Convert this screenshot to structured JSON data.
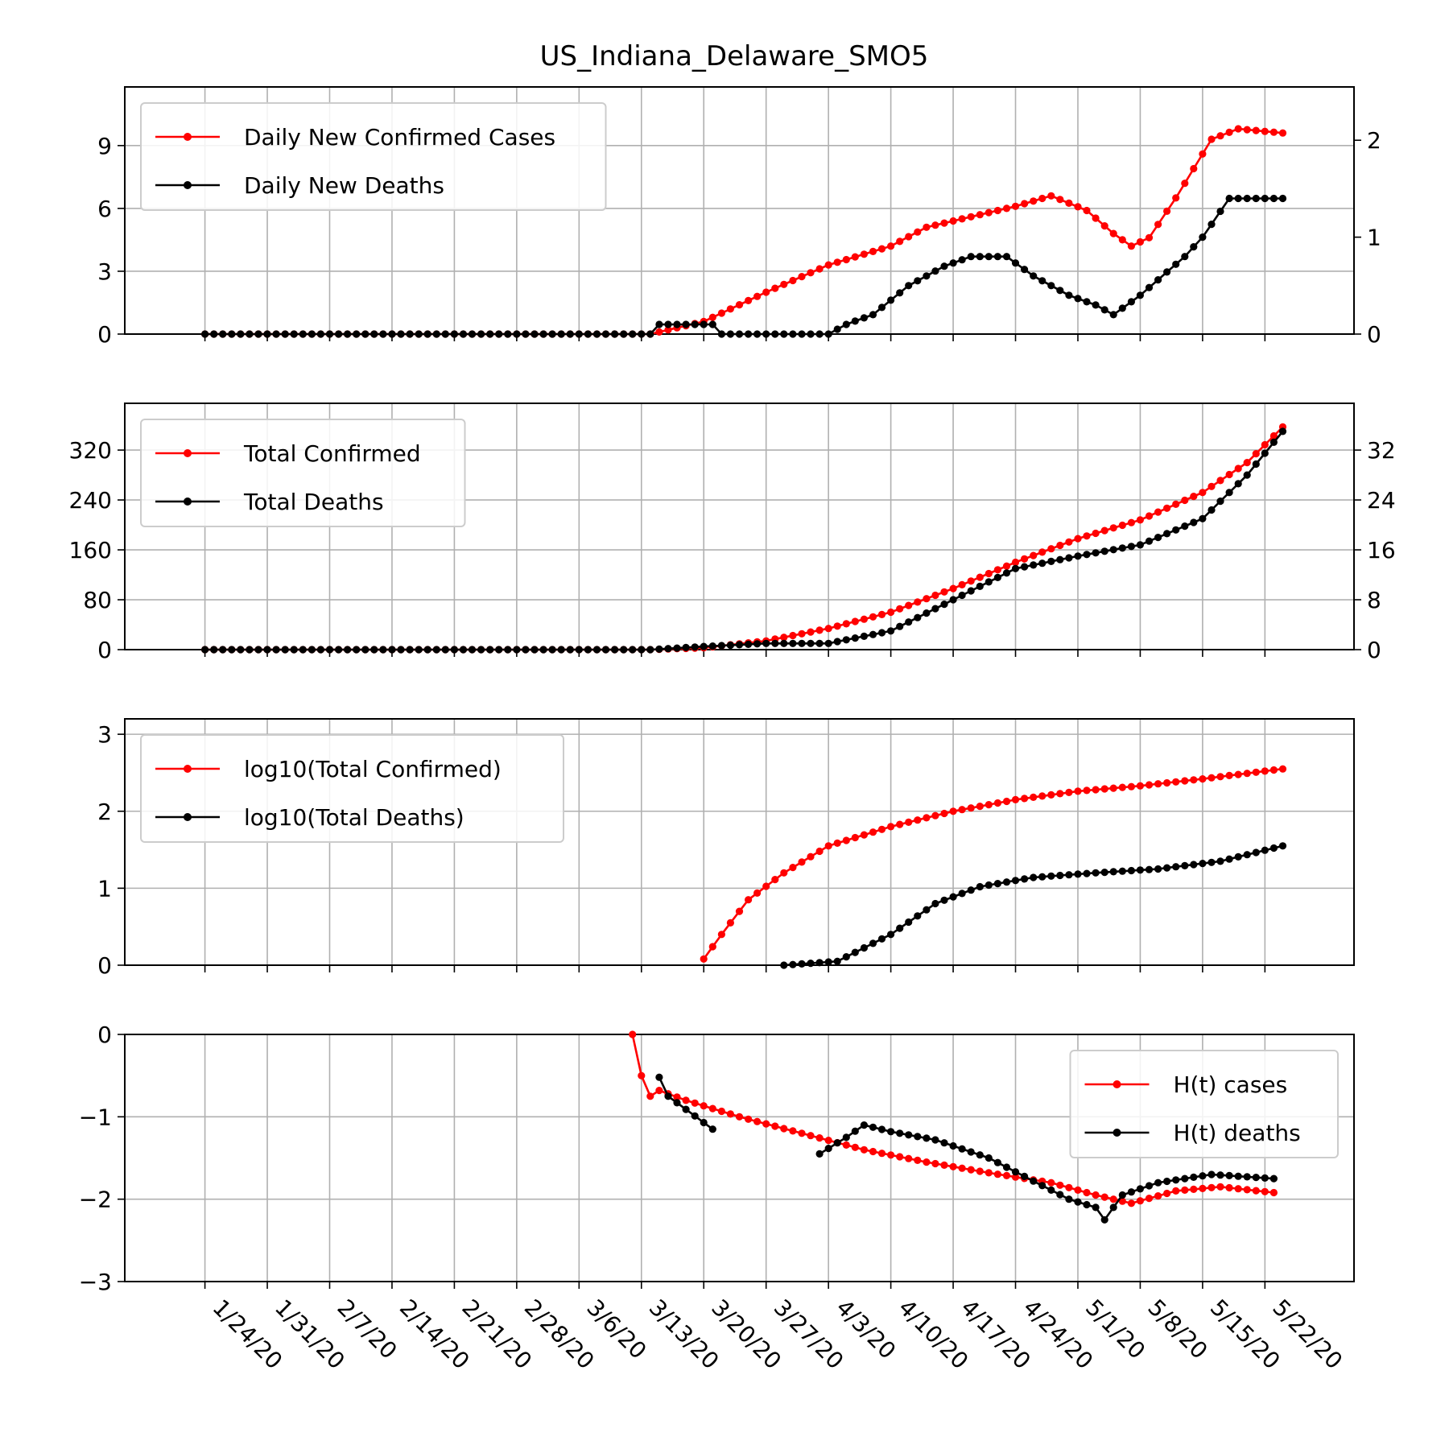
{
  "chart_data": {
    "title": "US_Indiana_Delaware_SMO5",
    "type": "line",
    "x_ticks": [
      "1/24/20",
      "1/31/20",
      "2/7/20",
      "2/14/20",
      "2/21/20",
      "2/28/20",
      "3/6/20",
      "3/13/20",
      "3/20/20",
      "3/27/20",
      "4/3/20",
      "4/10/20",
      "4/17/20",
      "4/24/20",
      "5/1/20",
      "5/8/20",
      "5/15/20",
      "5/22/20"
    ],
    "x_range": [
      "2020-01-15",
      "2020-06-01"
    ],
    "series_start": "2020-01-24",
    "series_end": "2020-05-24",
    "colors": {
      "cases": "#ff0000",
      "deaths": "#000000",
      "grid": "#b0b0b0"
    },
    "panels": [
      {
        "name": "daily",
        "type": "line",
        "legend": [
          "Daily New Confirmed Cases",
          "Daily New Deaths"
        ],
        "legend_loc": "upper left",
        "grid": true,
        "ylim_left": [
          0,
          11.8
        ],
        "yticks_left": [
          "0",
          "3",
          "6",
          "9"
        ],
        "ylim_right": [
          0,
          2.55
        ],
        "yticks_right": [
          "0",
          "1",
          "2"
        ],
        "cases_keypoints": [
          [
            "2020-03-14",
            0
          ],
          [
            "2020-03-20",
            0.6
          ],
          [
            "2020-03-27",
            2.0
          ],
          [
            "2020-04-03",
            3.3
          ],
          [
            "2020-04-10",
            4.2
          ],
          [
            "2020-04-14",
            5.1
          ],
          [
            "2020-04-20",
            5.7
          ],
          [
            "2020-04-24",
            6.1
          ],
          [
            "2020-04-28",
            6.6
          ],
          [
            "2020-05-02",
            5.9
          ],
          [
            "2020-05-05",
            4.8
          ],
          [
            "2020-05-07",
            4.2
          ],
          [
            "2020-05-09",
            4.6
          ],
          [
            "2020-05-12",
            6.5
          ],
          [
            "2020-05-16",
            9.3
          ],
          [
            "2020-05-19",
            9.8
          ],
          [
            "2020-05-24",
            9.6
          ]
        ],
        "deaths_keypoints": [
          [
            "2020-03-14",
            0
          ],
          [
            "2020-03-15",
            0.1
          ],
          [
            "2020-03-21",
            0.1
          ],
          [
            "2020-03-22",
            0
          ],
          [
            "2020-04-03",
            0
          ],
          [
            "2020-04-05",
            0.1
          ],
          [
            "2020-04-08",
            0.2
          ],
          [
            "2020-04-12",
            0.5
          ],
          [
            "2020-04-16",
            0.7
          ],
          [
            "2020-04-19",
            0.8
          ],
          [
            "2020-04-23",
            0.8
          ],
          [
            "2020-04-26",
            0.6
          ],
          [
            "2020-04-30",
            0.4
          ],
          [
            "2020-05-03",
            0.3
          ],
          [
            "2020-05-05",
            0.2
          ],
          [
            "2020-05-08",
            0.4
          ],
          [
            "2020-05-13",
            0.8
          ],
          [
            "2020-05-15",
            1.0
          ],
          [
            "2020-05-18",
            1.4
          ],
          [
            "2020-05-24",
            1.4
          ]
        ]
      },
      {
        "name": "total",
        "type": "line",
        "legend": [
          "Total Confirmed",
          "Total Deaths"
        ],
        "legend_loc": "upper left",
        "grid": true,
        "ylim_left": [
          0,
          395
        ],
        "yticks_left": [
          "0",
          "80",
          "160",
          "240",
          "320"
        ],
        "ylim_right": [
          0,
          39.5
        ],
        "yticks_right": [
          "0",
          "8",
          "16",
          "24",
          "32"
        ],
        "cases_keypoints": [
          [
            "2020-03-14",
            0
          ],
          [
            "2020-03-20",
            3
          ],
          [
            "2020-03-27",
            14
          ],
          [
            "2020-04-03",
            34
          ],
          [
            "2020-04-10",
            60
          ],
          [
            "2020-04-17",
            98
          ],
          [
            "2020-04-24",
            140
          ],
          [
            "2020-05-01",
            178
          ],
          [
            "2020-05-08",
            208
          ],
          [
            "2020-05-15",
            252
          ],
          [
            "2020-05-20",
            300
          ],
          [
            "2020-05-24",
            357
          ]
        ],
        "deaths_keypoints": [
          [
            "2020-03-14",
            0
          ],
          [
            "2020-03-20",
            0.5
          ],
          [
            "2020-03-27",
            1
          ],
          [
            "2020-04-03",
            1
          ],
          [
            "2020-04-10",
            3
          ],
          [
            "2020-04-17",
            8
          ],
          [
            "2020-04-24",
            13
          ],
          [
            "2020-05-01",
            15
          ],
          [
            "2020-05-08",
            16.8
          ],
          [
            "2020-05-15",
            21
          ],
          [
            "2020-05-20",
            28
          ],
          [
            "2020-05-24",
            35
          ]
        ]
      },
      {
        "name": "log10",
        "type": "line",
        "legend": [
          "log10(Total Confirmed)",
          "log10(Total Deaths)"
        ],
        "legend_loc": "upper left",
        "grid": true,
        "ylim_left": [
          0,
          3.2
        ],
        "yticks_left": [
          "0",
          "1",
          "2",
          "3"
        ],
        "cases_keypoints": [
          [
            "2020-03-20",
            0.08
          ],
          [
            "2020-03-22",
            0.4
          ],
          [
            "2020-03-25",
            0.85
          ],
          [
            "2020-03-29",
            1.2
          ],
          [
            "2020-04-03",
            1.55
          ],
          [
            "2020-04-10",
            1.8
          ],
          [
            "2020-04-17",
            2.0
          ],
          [
            "2020-04-24",
            2.15
          ],
          [
            "2020-05-01",
            2.26
          ],
          [
            "2020-05-08",
            2.33
          ],
          [
            "2020-05-15",
            2.42
          ],
          [
            "2020-05-24",
            2.55
          ]
        ],
        "deaths_keypoints": [
          [
            "2020-03-29",
            0
          ],
          [
            "2020-04-04",
            0.05
          ],
          [
            "2020-04-10",
            0.4
          ],
          [
            "2020-04-15",
            0.8
          ],
          [
            "2020-04-20",
            1.02
          ],
          [
            "2020-04-26",
            1.14
          ],
          [
            "2020-05-03",
            1.2
          ],
          [
            "2020-05-10",
            1.25
          ],
          [
            "2020-05-17",
            1.35
          ],
          [
            "2020-05-24",
            1.55
          ]
        ]
      },
      {
        "name": "H(t)",
        "type": "line",
        "legend": [
          "H(t) cases",
          "H(t) deaths"
        ],
        "legend_loc": "upper right",
        "grid": true,
        "ylim_left": [
          -3,
          0
        ],
        "yticks_left": [
          "0",
          "−1",
          "−2",
          "−3"
        ],
        "cases_keypoints": [
          [
            "2020-03-12",
            0
          ],
          [
            "2020-03-13",
            -0.5
          ],
          [
            "2020-03-14",
            -0.75
          ],
          [
            "2020-03-15",
            -0.68
          ],
          [
            "2020-03-18",
            -0.8
          ],
          [
            "2020-03-24",
            -1.0
          ],
          [
            "2020-03-31",
            -1.2
          ],
          [
            "2020-04-07",
            -1.4
          ],
          [
            "2020-04-14",
            -1.55
          ],
          [
            "2020-04-21",
            -1.68
          ],
          [
            "2020-04-28",
            -1.8
          ],
          [
            "2020-05-03",
            -1.95
          ],
          [
            "2020-05-07",
            -2.05
          ],
          [
            "2020-05-12",
            -1.9
          ],
          [
            "2020-05-17",
            -1.85
          ],
          [
            "2020-05-23",
            -1.92
          ]
        ],
        "deaths_keypoints": [
          [
            "2020-03-15",
            -0.52
          ],
          [
            "2020-03-16",
            -0.75
          ],
          [
            "2020-03-21",
            -1.15
          ],
          [
            "2020-03-22",
            null
          ],
          [
            "2020-03-28",
            -1.38
          ],
          [
            "2020-04-02",
            -1.45
          ],
          [
            "2020-04-05",
            -1.25
          ],
          [
            "2020-04-07",
            -1.1
          ],
          [
            "2020-04-10",
            -1.18
          ],
          [
            "2020-04-15",
            -1.28
          ],
          [
            "2020-04-21",
            -1.5
          ],
          [
            "2020-04-26",
            -1.78
          ],
          [
            "2020-04-30",
            -2.0
          ],
          [
            "2020-05-03",
            -2.1
          ],
          [
            "2020-05-04",
            -2.25
          ],
          [
            "2020-05-06",
            -1.95
          ],
          [
            "2020-05-10",
            -1.8
          ],
          [
            "2020-05-16",
            -1.7
          ],
          [
            "2020-05-23",
            -1.75
          ]
        ]
      }
    ]
  }
}
